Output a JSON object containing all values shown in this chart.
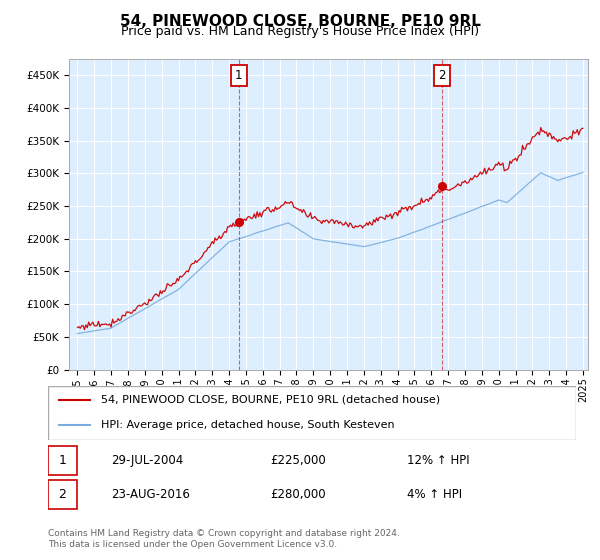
{
  "title": "54, PINEWOOD CLOSE, BOURNE, PE10 9RL",
  "subtitle": "Price paid vs. HM Land Registry's House Price Index (HPI)",
  "legend_line1": "54, PINEWOOD CLOSE, BOURNE, PE10 9RL (detached house)",
  "legend_line2": "HPI: Average price, detached house, South Kesteven",
  "footnote": "Contains HM Land Registry data © Crown copyright and database right 2024.\nThis data is licensed under the Open Government Licence v3.0.",
  "sale1_date": "29-JUL-2004",
  "sale1_price": "£225,000",
  "sale1_hpi": "12% ↑ HPI",
  "sale2_date": "23-AUG-2016",
  "sale2_price": "£280,000",
  "sale2_hpi": "4% ↑ HPI",
  "price_line_color": "#cc0000",
  "hpi_line_color": "#7aaddd",
  "bg_color": "#ddeeff",
  "fig_bg_color": "#ffffff",
  "sale_marker1_x": 2004.58,
  "sale_marker1_y": 225000,
  "sale_marker2_x": 2016.65,
  "sale_marker2_y": 280000,
  "ylim": [
    0,
    475000
  ],
  "xlim_start": 1994.5,
  "xlim_end": 2025.3
}
